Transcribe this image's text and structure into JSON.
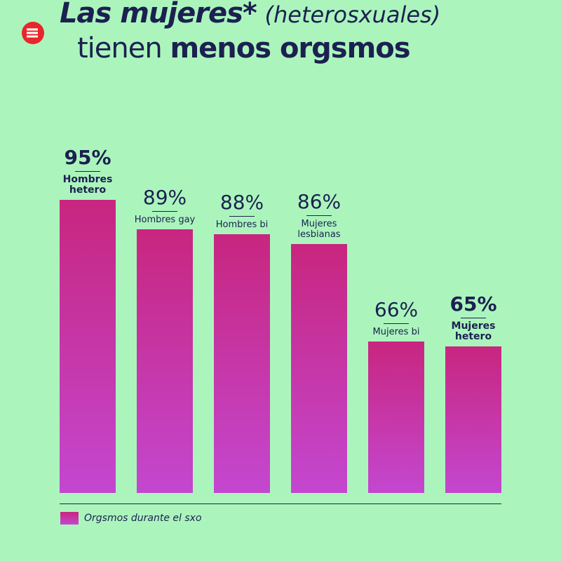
{
  "chart_data": {
    "type": "bar",
    "title": [
      "Las mujeres*",
      "(heterosxuales)",
      "tienen",
      "menos orgsmos"
    ],
    "categories": [
      "Hombres hetero",
      "Hombres gay",
      "Hombres bi",
      "Mujeres lesbianas",
      "Mujeres bi",
      "Mujeres hetero"
    ],
    "series": [
      {
        "name": "Orgsmos durante el sxo",
        "color": "#c8267f",
        "values": [
          95,
          89,
          88,
          86,
          66,
          65
        ],
        "value_labels": [
          "95%",
          "89%",
          "88%",
          "86%",
          "66%",
          "65%"
        ]
      }
    ],
    "emphasis": [
      true,
      false,
      false,
      false,
      false,
      true
    ],
    "ylim": [
      35,
      97
    ]
  }
}
